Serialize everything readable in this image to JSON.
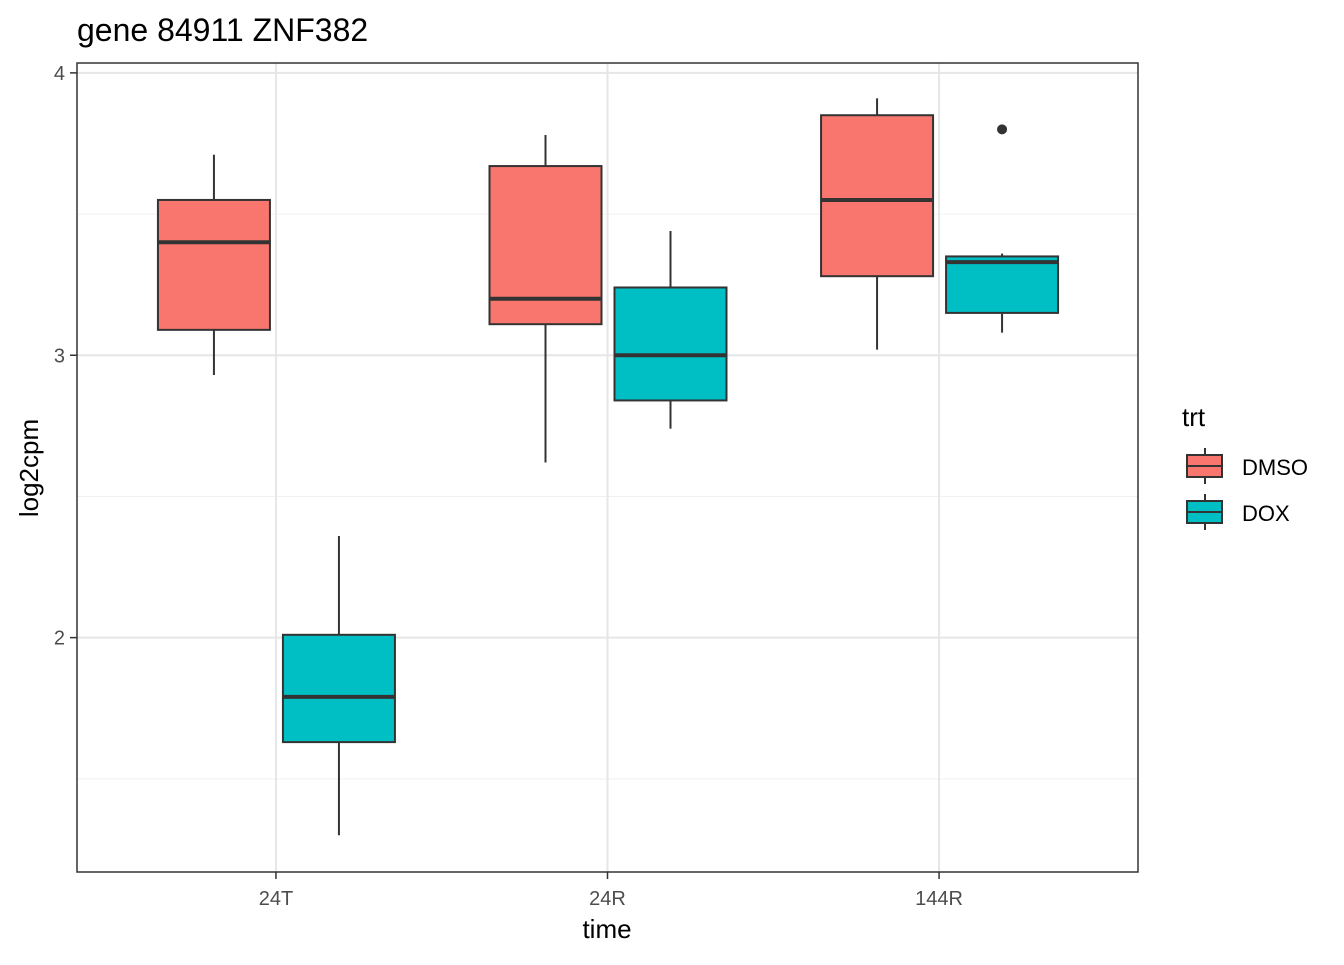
{
  "chart_data": {
    "type": "boxplot",
    "title": "gene 84911 ZNF382",
    "xlabel": "time",
    "ylabel": "log2cpm",
    "categories": [
      "24T",
      "24R",
      "144R"
    ],
    "ylim": [
      1.17,
      4.035
    ],
    "yticks": [
      2,
      3,
      4
    ],
    "ytick_labels": [
      "2",
      "3",
      "4"
    ],
    "minor_yticks": [
      1.5,
      2.5,
      3.5
    ],
    "grid": true,
    "legend": {
      "title": "trt",
      "placement": "right",
      "entries": [
        "DMSO",
        "DOX"
      ]
    },
    "series": [
      {
        "name": "DMSO",
        "color": "#F8766D",
        "boxes": [
          {
            "category": "24T",
            "lower_whisker": 2.93,
            "q1": 3.09,
            "median": 3.4,
            "q3": 3.55,
            "upper_whisker": 3.71,
            "outliers": []
          },
          {
            "category": "24R",
            "lower_whisker": 2.62,
            "q1": 3.11,
            "median": 3.2,
            "q3": 3.67,
            "upper_whisker": 3.78,
            "outliers": []
          },
          {
            "category": "144R",
            "lower_whisker": 3.02,
            "q1": 3.28,
            "median": 3.55,
            "q3": 3.85,
            "upper_whisker": 3.91,
            "outliers": []
          }
        ]
      },
      {
        "name": "DOX",
        "color": "#00BFC4",
        "boxes": [
          {
            "category": "24T",
            "lower_whisker": 1.3,
            "q1": 1.63,
            "median": 1.79,
            "q3": 2.01,
            "upper_whisker": 2.36,
            "outliers": []
          },
          {
            "category": "24R",
            "lower_whisker": 2.74,
            "q1": 2.84,
            "median": 3.0,
            "q3": 3.24,
            "upper_whisker": 3.44,
            "outliers": []
          },
          {
            "category": "144R",
            "lower_whisker": 3.08,
            "q1": 3.15,
            "median": 3.33,
            "q3": 3.35,
            "upper_whisker": 3.36,
            "outliers": [
              3.8
            ]
          }
        ]
      }
    ]
  }
}
